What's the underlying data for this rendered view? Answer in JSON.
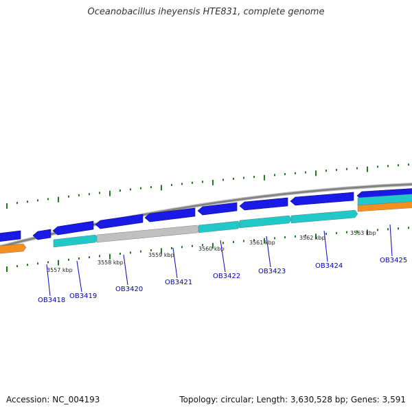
{
  "title": "Oceanobacillus iheyensis HTE831, complete genome",
  "footer": {
    "accession": "Accession: NC_004193",
    "summary": "Topology: circular; Length: 3,630,528 bp; Genes: 3,591"
  },
  "colors": {
    "forward_gene": "#1a1ae6",
    "reverse_gene": "#20c8c8",
    "grey_gene": "#c0c0c0",
    "orange_gene": "#f5901e",
    "backbone": "#808080",
    "tick": "#1e7a1e",
    "label": "#0000c8"
  },
  "scale_ticks": [
    "3557 kbp",
    "3558 kbp",
    "3559 kbp",
    "3560 kbp",
    "3561 kbp",
    "3562 kbp",
    "3563 kbp"
  ],
  "gene_labels": [
    "OB3418",
    "OB3419",
    "OB3420",
    "OB3421",
    "OB3422",
    "OB3423",
    "OB3424",
    "OB3425"
  ]
}
